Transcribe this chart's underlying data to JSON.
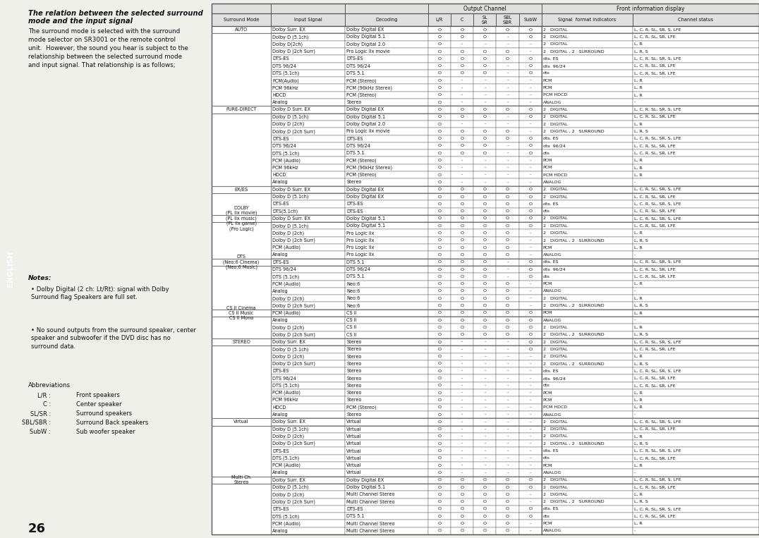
{
  "title_line1": "The relation between the selected surround",
  "title_line2": "mode and the input signal",
  "intro_text": "The surround mode is selected with the surround\nmode selector on SR3001 or the remote control\nunit.  However, the sound you hear is subject to the\nrelationship between the selected surround mode\nand input signal. That relationship is as follows;",
  "notes_title": "Notes:",
  "notes": [
    "Dolby Digital (2 ch: Lt/Rt): signal with Dolby\nSurround flag Speakers are full set.",
    "No sound outputs from the surround speaker, center\nspeaker and subwoofer if the DVD disc has no\nsurround data."
  ],
  "abbrev_title": "Abbreviations",
  "abbreviations": [
    [
      "L/R",
      "Front speakers"
    ],
    [
      "C",
      "Center speaker"
    ],
    [
      "SL/SR",
      "Surround speakers"
    ],
    [
      "SBL/SBR",
      "Surround Back speakers"
    ],
    [
      "SubW",
      "Sub woofer speaker"
    ]
  ],
  "page_number": "26",
  "rows": [
    [
      "AUTO",
      "Dolby Surr. EX",
      "Dolby Digital EX",
      "O",
      "O",
      "O",
      "O",
      "O",
      "2   DIGITAL",
      "L, C, R, SL, SR, S, LFE"
    ],
    [
      "",
      "Dolby D (5.1ch)",
      "Dolby Digital 5.1",
      "O",
      "O",
      "O",
      "-",
      "O",
      "2   DIGITAL",
      "L, C, R, SL, SR, LFE"
    ],
    [
      "",
      "Dolby D(2ch)",
      "Dolby Digital 2.0",
      "O",
      "-",
      "-",
      "-",
      "-",
      "2   DIGITAL",
      "L, R"
    ],
    [
      "",
      "Dolby D (2ch Surr)",
      "Pro Logic IIx movie",
      "O",
      "O",
      "O",
      "O",
      "-",
      "2   DIGITAL , 2   SURROUND",
      "L, R, S"
    ],
    [
      "",
      "DTS-ES",
      "DTS-ES",
      "O",
      "O",
      "O",
      "O",
      "O",
      "dts. ES",
      "L, C, R, SL, SR, S, LFE"
    ],
    [
      "",
      "DTS 96/24",
      "DTS 96/24",
      "O",
      "O",
      "O",
      "-",
      "O",
      "dts  96/24",
      "L, C, R, SL, SR, LFE"
    ],
    [
      "",
      "DTS (5.1ch)",
      "DTS 5.1",
      "O",
      "O",
      "O",
      "-",
      "O",
      "dts",
      "L, C, R, SL, SR, LFE"
    ],
    [
      "",
      "PCM(Audio)",
      "PCM (Stereo)",
      "O",
      "-",
      "-",
      "-",
      "-",
      "PCM",
      "L, R"
    ],
    [
      "",
      "PCM 96kHz",
      "PCM (96kHz Stereo)",
      "O",
      "-",
      "-",
      "-",
      "-",
      "PCM",
      "L, R"
    ],
    [
      "",
      "HDCD",
      "PCM (Stereo)",
      "O",
      "-",
      "-",
      "-",
      "-",
      "PCM HDCD",
      "L, R"
    ],
    [
      "",
      "Analog",
      "Stereo",
      "O",
      "-",
      "-",
      "-",
      "-",
      "ANALOG",
      "-"
    ],
    [
      "PURE-DIRECT",
      "Dolby D Surr. EX",
      "Dolby Digital EX",
      "O",
      "O",
      "O",
      "O",
      "O",
      "2   DIGITAL",
      "L, C, R, SL, SR, S, LFE"
    ],
    [
      "",
      "Dolby D (5.1ch)",
      "Dolby Digital 5.1",
      "O",
      "O",
      "O",
      "-",
      "O",
      "2   DIGITAL",
      "L, C, R, SL, SR, LFE"
    ],
    [
      "",
      "Dolby D (2ch)",
      "Dolby Digital 2.0",
      "O",
      "-",
      "-",
      "-",
      "-",
      "2   DIGITAL",
      "L, R"
    ],
    [
      "",
      "Dolby D (2ch Surr)",
      "Pro Logic IIx movie",
      "O",
      "O",
      "O",
      "O",
      "-",
      "2   DIGITAL , 2   SURROUND",
      "L, R, S"
    ],
    [
      "",
      "DTS-ES",
      "DTS-ES",
      "O",
      "O",
      "O",
      "O",
      "O",
      "dts. ES",
      "L, C, R, SL, SR, S, LFE"
    ],
    [
      "",
      "DTS 96/24",
      "DTS 96/24",
      "O",
      "O",
      "O",
      "-",
      "O",
      "dts  96/24",
      "L, C, R, SL, SR, LFE"
    ],
    [
      "",
      "DTS (5.1ch)",
      "DTS 5.1",
      "O",
      "O",
      "O",
      "-",
      "O",
      "dts",
      "L, C, R, SL, SR, LFE"
    ],
    [
      "",
      "PCM (Audio)",
      "PCM (Stereo)",
      "O",
      "-",
      "-",
      "-",
      "-",
      "PCM",
      "L, R"
    ],
    [
      "",
      "PCM 96kHz",
      "PCM (96kHz Stereo)",
      "O",
      "-",
      "-",
      "-",
      "-",
      "PCM",
      "L, R"
    ],
    [
      "",
      "HDCD",
      "PCM (Stereo)",
      "O",
      "-",
      "-",
      "-",
      "-",
      "PCM HDCD",
      "L, R"
    ],
    [
      "",
      "Analog",
      "Stereo",
      "O",
      "-",
      "-",
      "-",
      "-",
      "ANALOG",
      "-"
    ],
    [
      "EX/ES",
      "Dolby D Surr. EX",
      "Dolby Digital EX",
      "O",
      "O",
      "O",
      "O",
      "O",
      "2   DIGITAL",
      "L, C, R, SL, SR, S, LFE"
    ],
    [
      "",
      "Dolby D (5.1ch)",
      "Dolby Digital EX",
      "O",
      "O",
      "O",
      "O",
      "O",
      "2   DIGITAL",
      "L, C, R, SL, SR, LFE"
    ],
    [
      "",
      "DTS-ES",
      "DTS-ES",
      "O",
      "O",
      "O",
      "O",
      "O",
      "dts. ES",
      "L, C, R, SL, SR, S, LFE"
    ],
    [
      "",
      "DTS(5.1ch)",
      "DTS-ES",
      "O",
      "O",
      "O",
      "O",
      "O",
      "dts",
      "L, C, R, SL, SR, LFE"
    ],
    [
      "DOLBY\n(PL IIx movie)\n(PL IIx music)\n(PL IIx game)\n(Pro Logic)",
      "Dolby D Surr. EX",
      "Dolby Digital 5.1",
      "O",
      "O",
      "O",
      "O",
      "O",
      "2   DIGITAL",
      "L, C, R, SL, SR, S, LFE"
    ],
    [
      "",
      "Dolby D (5.1ch)",
      "Dolby Digital 5.1",
      "O",
      "O",
      "O",
      "O",
      "O",
      "2   DIGITAL",
      "L, C, R, SL, SR, LFE"
    ],
    [
      "",
      "Dolby D (2ch)",
      "Pro Logic IIx",
      "O",
      "O",
      "O",
      "O",
      "-",
      "2   DIGITAL",
      "L, R"
    ],
    [
      "",
      "Dolby D (2ch Surr)",
      "Pro Logic IIx",
      "O",
      "O",
      "O",
      "O",
      "-",
      "2   DIGITAL , 2   SURROUND",
      "L, R, S"
    ],
    [
      "",
      "PCM (Audio)",
      "Pro Logic IIx",
      "O",
      "O",
      "O",
      "O",
      "-",
      "PCM",
      "L, R"
    ],
    [
      "",
      "Analog",
      "Pro Logic IIx",
      "O",
      "O",
      "O",
      "O",
      "-",
      "ANALOG",
      "-"
    ],
    [
      "DTS\n(Neo:6 Cinema)\n(Neo:6 Music)",
      "DTS-ES",
      "DTS 5.1",
      "O",
      "O",
      "O",
      "-",
      "O",
      "dts. ES",
      "L, C, R, SL, SR, S, LFE"
    ],
    [
      "",
      "DTS 96/24",
      "DTS 96/24",
      "O",
      "O",
      "O",
      "-",
      "O",
      "dts  96/24",
      "L, C, R, SL, SR, LFE"
    ],
    [
      "",
      "DTS (5.1ch)",
      "DTS 5.1",
      "O",
      "O",
      "O",
      "-",
      "O",
      "dts",
      "L, C, R, SL, SR, LFE"
    ],
    [
      "",
      "PCM (Audio)",
      "Neo:6",
      "O",
      "O",
      "O",
      "O",
      "-",
      "PCM",
      "L, R"
    ],
    [
      "",
      "Analog",
      "Neo:6",
      "O",
      "O",
      "O",
      "O",
      "-",
      "ANALOG",
      "-"
    ],
    [
      "",
      "Dolby D (2ch)",
      "Neo:6",
      "O",
      "O",
      "O",
      "O",
      "-",
      "2   DIGITAL",
      "L, R"
    ],
    [
      "",
      "Dolby D (2ch Surr)",
      "Neo:6",
      "O",
      "O",
      "O",
      "O",
      "-",
      "2   DIGITAL , 2   SURROUND",
      "L, R, S"
    ],
    [
      "CS II Cinema\nCS II Music\nCS II Mono",
      "PCM (Audio)",
      "CS II",
      "O",
      "O",
      "O",
      "O",
      "O",
      "PCM",
      "L, R"
    ],
    [
      "",
      "Analog",
      "CS II",
      "O",
      "O",
      "O",
      "O",
      "O",
      "ANALOG",
      "-"
    ],
    [
      "",
      "Dolby D (2ch)",
      "CS II",
      "O",
      "O",
      "O",
      "O",
      "O",
      "2   DIGITAL",
      "L, R"
    ],
    [
      "",
      "Dolby D (2ch Surr)",
      "CS II",
      "O",
      "O",
      "O",
      "O",
      "O",
      "2   DIGITAL , 2   SURROUND",
      "L, R, S"
    ],
    [
      "STEREO",
      "Dolby Surr. EX",
      "Stereo",
      "O",
      "-",
      "-",
      "-",
      "O",
      "2   DIGITAL",
      "L, C, R, SL, SR, S, LFE"
    ],
    [
      "",
      "Dolby D (5.1ch)",
      "Stereo",
      "O",
      "-",
      "-",
      "-",
      "O",
      "2   DIGITAL",
      "L, C, R, SL, SR, LFE"
    ],
    [
      "",
      "Dolby D (2ch)",
      "Stereo",
      "O",
      "-",
      "-",
      "-",
      "-",
      "2   DIGITAL",
      "L, R"
    ],
    [
      "",
      "Dolby D (2ch Surr)",
      "Stereo",
      "O",
      "-",
      "-",
      "-",
      "-",
      "2   DIGITAL , 2   SURROUND",
      "L, R, S"
    ],
    [
      "",
      "DTS-ES",
      "Stereo",
      "O",
      "-",
      "-",
      "-",
      "-",
      "dts. ES",
      "L, C, R, SL, SR, S, LFE"
    ],
    [
      "",
      "DTS 96/24",
      "Stereo",
      "O",
      "-",
      "-",
      "-",
      "-",
      "dts  96/24",
      "L, C, R, SL, SR, LFE"
    ],
    [
      "",
      "DTS (5.1ch)",
      "Stereo",
      "O",
      "-",
      "-",
      "-",
      "-",
      "dts",
      "L, C, R, SL, SR, LFE"
    ],
    [
      "",
      "PCM (Audio)",
      "Stereo",
      "O",
      "-",
      "-",
      "-",
      "-",
      "PCM",
      "L, R"
    ],
    [
      "",
      "PCM 96kHz",
      "Stereo",
      "O",
      "-",
      "-",
      "-",
      "-",
      "PCM",
      "L, R"
    ],
    [
      "",
      "HDCD",
      "PCM (Stereo)",
      "O",
      "-",
      "-",
      "-",
      "-",
      "PCM HDCD",
      "L, R"
    ],
    [
      "",
      "Analog",
      "Stereo",
      "O",
      "-",
      "-",
      "-",
      "-",
      "ANALOG",
      "-"
    ],
    [
      "Virtual",
      "Dolby Surr. EX",
      "Virtual",
      "O",
      "-",
      "-",
      "-",
      "-",
      "2   DIGITAL",
      "L, C, R, SL, SR, S, LFE"
    ],
    [
      "",
      "Dolby D (5.1ch)",
      "Virtual",
      "O",
      "-",
      "-",
      "-",
      "-",
      "2   DIGITAL",
      "L, C, R, SL, SR, LFE"
    ],
    [
      "",
      "Dolby D (2ch)",
      "Virtual",
      "O",
      "-",
      "-",
      "-",
      "-",
      "2   DIGITAL",
      "L, R"
    ],
    [
      "",
      "Dolby D (2ch Surr)",
      "Virtual",
      "O",
      "-",
      "-",
      "-",
      "-",
      "2   DIGITAL , 2   SURROUND",
      "L, R, S"
    ],
    [
      "",
      "DTS-ES",
      "Virtual",
      "O",
      "-",
      "-",
      "-",
      "-",
      "dts. ES",
      "L, C, R, SL, SR, S, LFE"
    ],
    [
      "",
      "DTS (5.1ch)",
      "Virtual",
      "O",
      "-",
      "-",
      "-",
      "-",
      "dts",
      "L, C, R, SL, SR, LFE"
    ],
    [
      "",
      "PCM (Audio)",
      "Virtual",
      "O",
      "-",
      "-",
      "-",
      "-",
      "PCM",
      "L, R"
    ],
    [
      "",
      "Analog",
      "Virtual",
      "O",
      "-",
      "-",
      "-",
      "-",
      "ANALOG",
      "-"
    ],
    [
      "Multi Ch.\nStereo",
      "Dolby Surr. EX",
      "Dolby Digital EX",
      "O",
      "O",
      "O",
      "O",
      "O",
      "2   DIGITAL",
      "L, C, R, SL, SR, S, LFE"
    ],
    [
      "",
      "Dolby D (5.1ch)",
      "Dolby Digital 5.1",
      "O",
      "O",
      "O",
      "O",
      "O",
      "2   DIGITAL",
      "L, C, R, SL, SR, LFE"
    ],
    [
      "",
      "Dolby D (2ch)",
      "Multi Channel Stereo",
      "O",
      "O",
      "O",
      "O",
      "-",
      "2   DIGITAL",
      "L, R"
    ],
    [
      "",
      "Dolby D (2ch Surr)",
      "Multi Channel Stereo",
      "O",
      "O",
      "O",
      "O",
      "-",
      "2   DIGITAL , 2   SURROUND",
      "L, R, S"
    ],
    [
      "",
      "DTS-ES",
      "DTS-ES",
      "O",
      "O",
      "O",
      "O",
      "O",
      "dts. ES",
      "L, C, R, SL, SR, S, LFE"
    ],
    [
      "",
      "DTS (5.1ch)",
      "DTS 5.1",
      "O",
      "O",
      "O",
      "O",
      "O",
      "dts",
      "L, C, R, SL, SR, LFE"
    ],
    [
      "",
      "PCM (Audio)",
      "Multi Channel Stereo",
      "O",
      "O",
      "O",
      "O",
      "-",
      "PCM",
      "L, R"
    ],
    [
      "",
      "Analog",
      "Multi Channel Stereo",
      "O",
      "O",
      "O",
      "O",
      "-",
      "ANALOG",
      "-"
    ]
  ],
  "bg_color": "#f0f0eb",
  "table_bg": "#ffffff",
  "header_bg": "#e0e0e0",
  "border_color": "#555555",
  "text_color": "#111111",
  "sidebar_bg": "#1a1a1a",
  "sidebar_text": "#ffffff"
}
